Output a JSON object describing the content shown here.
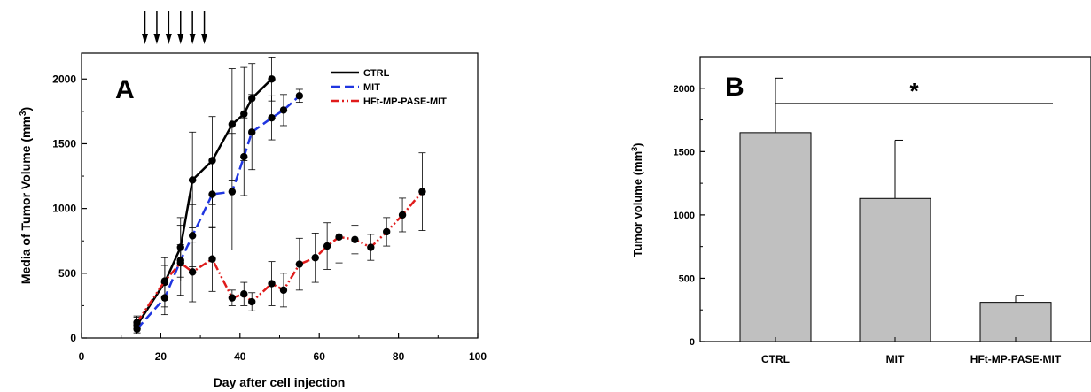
{
  "chart_data": [
    {
      "panel_label": "A",
      "type": "line",
      "xlabel": "Day after cell injection",
      "ylabel": "Media of Tumor Volume (mm",
      "ylabel_sup": "3",
      "ylabel_close": ")",
      "xlim": [
        0,
        100
      ],
      "ylim": [
        0,
        2200
      ],
      "xticks": [
        0,
        20,
        40,
        60,
        80,
        100
      ],
      "yticks": [
        0,
        500,
        1000,
        1500,
        2000
      ],
      "legend_position": "top-right",
      "treatment_days": [
        16,
        19,
        22,
        25,
        28,
        31
      ],
      "series": [
        {
          "name": "CTRL",
          "color": "#000000",
          "dash": "solid",
          "x": [
            14,
            21,
            25,
            28,
            33,
            38,
            41,
            43,
            48
          ],
          "y": [
            100,
            430,
            700,
            1220,
            1370,
            1650,
            1730,
            1850,
            2000
          ],
          "err": [
            60,
            190,
            230,
            370,
            340,
            430,
            360,
            270,
            170
          ]
        },
        {
          "name": "MIT",
          "color": "#1f35e0",
          "dash": "long-dash",
          "x": [
            14,
            21,
            25,
            28,
            33,
            38,
            41,
            43,
            48,
            51,
            55
          ],
          "y": [
            70,
            310,
            600,
            790,
            1110,
            1130,
            1400,
            1590,
            1700,
            1760,
            1870
          ],
          "err": [
            40,
            130,
            270,
            240,
            260,
            450,
            300,
            290,
            170,
            120,
            50
          ]
        },
        {
          "name": "HFt-MP-PASE-MIT",
          "color": "#e01b1b",
          "dash": "dash-dot-dot",
          "x": [
            14,
            21,
            25,
            28,
            33,
            38,
            41,
            43,
            48,
            51,
            55,
            59,
            62,
            65,
            69,
            73,
            77,
            81,
            86
          ],
          "y": [
            120,
            440,
            580,
            510,
            610,
            310,
            340,
            280,
            420,
            370,
            570,
            620,
            710,
            780,
            760,
            700,
            820,
            950,
            1130
          ],
          "err": [
            50,
            120,
            140,
            230,
            250,
            60,
            90,
            70,
            170,
            130,
            200,
            190,
            180,
            200,
            110,
            100,
            110,
            130,
            300
          ]
        }
      ]
    },
    {
      "panel_label": "B",
      "type": "bar",
      "ylabel": "Tumor volume (mm",
      "ylabel_sup": "3",
      "ylabel_close": ")",
      "categories": [
        "CTRL",
        "MIT",
        "HFt-MP-PASE-MIT"
      ],
      "values": [
        1650,
        1130,
        310
      ],
      "errors": [
        430,
        460,
        55
      ],
      "ylim": [
        0,
        2250
      ],
      "yticks": [
        0,
        500,
        1000,
        1500,
        2000
      ],
      "bar_color": "#c0c0c0",
      "significance": {
        "label": "*",
        "from": "CTRL",
        "to": "HFt-MP-PASE-MIT"
      }
    }
  ]
}
